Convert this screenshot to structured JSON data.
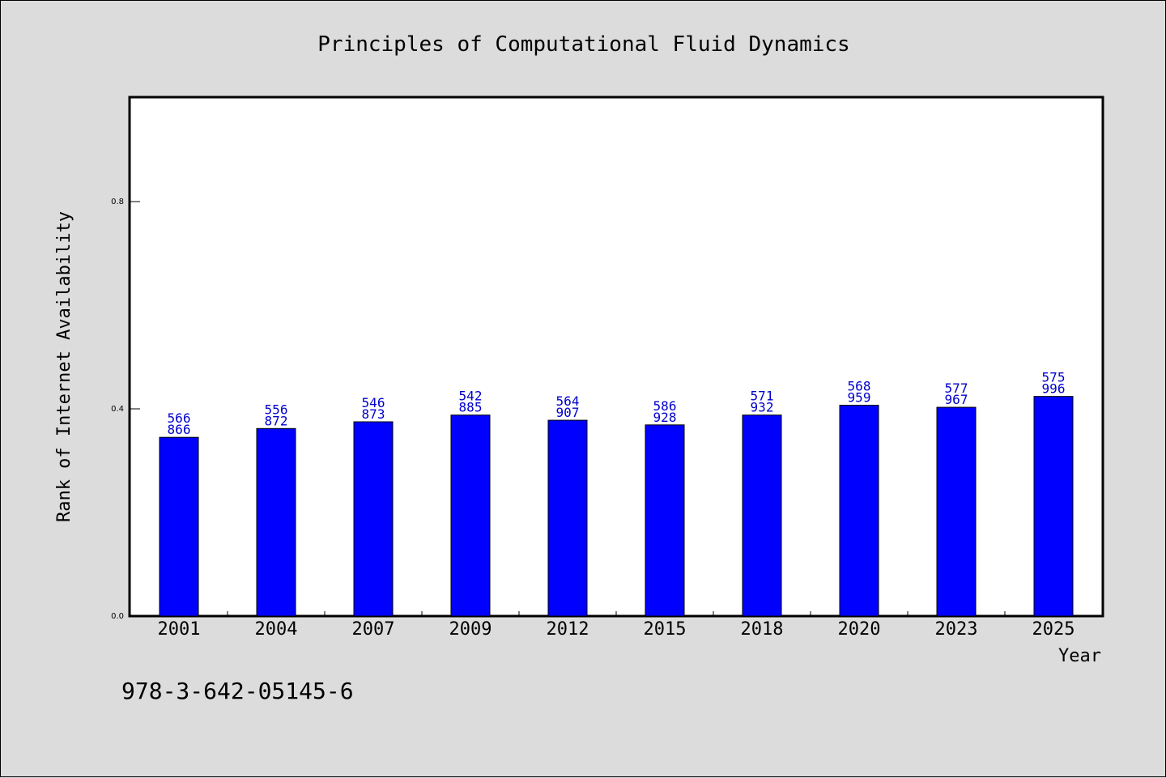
{
  "title": "Principles of Computational Fluid Dynamics",
  "isbn": "978-3-642-05145-6",
  "colors": {
    "bar": "#0000ff",
    "label": "#0000cc",
    "background": "#dcdcdc",
    "plot": "#ffffff"
  },
  "chart_data": {
    "type": "bar",
    "title": "Principles of Computational Fluid Dynamics",
    "xlabel": "Year",
    "ylabel": "Rank of Internet Availability",
    "categories": [
      "2001",
      "2004",
      "2007",
      "2009",
      "2012",
      "2015",
      "2018",
      "2020",
      "2023",
      "2025"
    ],
    "values": [
      0.345,
      0.362,
      0.375,
      0.388,
      0.378,
      0.369,
      0.388,
      0.407,
      0.403,
      0.424
    ],
    "data_labels": [
      [
        "566",
        "866"
      ],
      [
        "556",
        "872"
      ],
      [
        "546",
        "873"
      ],
      [
        "542",
        "885"
      ],
      [
        "564",
        "907"
      ],
      [
        "586",
        "928"
      ],
      [
        "571",
        "932"
      ],
      [
        "568",
        "959"
      ],
      [
        "577",
        "967"
      ],
      [
        "575",
        "996"
      ]
    ],
    "ylim": [
      0,
      1.0
    ],
    "yticks": [
      "0.0",
      "0.4",
      "0.8"
    ],
    "ytick_values": [
      0.0,
      0.4,
      0.8
    ],
    "grid": false,
    "legend": "none"
  }
}
